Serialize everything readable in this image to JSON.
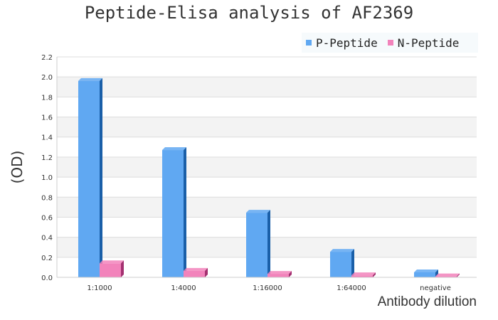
{
  "chart_data": {
    "type": "bar",
    "title": "Peptide-Elisa analysis of AF2369",
    "xlabel": "Antibody dilution",
    "ylabel": "(OD)",
    "categories": [
      "1:1000",
      "1:4000",
      "1:16000",
      "1:64000",
      "negative"
    ],
    "series": [
      {
        "name": "P-Peptide",
        "values": [
          1.96,
          1.27,
          0.645,
          0.255,
          0.05
        ],
        "color": "#60a8f2",
        "side_color": "#1a5fa8"
      },
      {
        "name": "N-Peptide",
        "values": [
          0.14,
          0.065,
          0.035,
          0.02,
          0.01
        ],
        "color": "#f283bb",
        "side_color": "#a33070"
      }
    ],
    "ylim": [
      0,
      2.2
    ],
    "yticks": [
      "0.0",
      "0.2",
      "0.4",
      "0.6",
      "0.8",
      "1.0",
      "1.2",
      "1.4",
      "1.6",
      "1.8",
      "2.0",
      "2.2"
    ],
    "grid": true,
    "legend": "top-right"
  }
}
